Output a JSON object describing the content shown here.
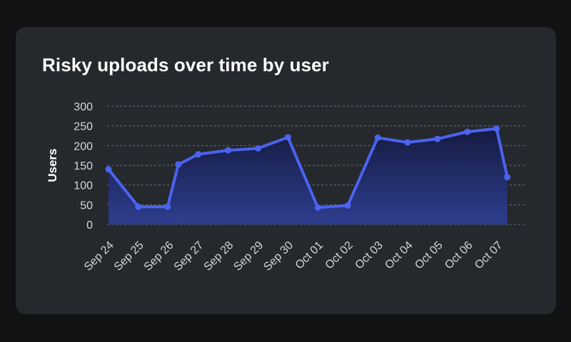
{
  "card": {
    "title": "Risky uploads over time by user"
  },
  "chart_data": {
    "type": "area",
    "title": "Risky uploads over time by user",
    "xlabel": "",
    "ylabel": "Users",
    "ylim": [
      0,
      300
    ],
    "yticks": [
      0,
      50,
      100,
      150,
      200,
      250,
      300
    ],
    "grid": true,
    "legend": "none",
    "categories": [
      "Sep 24",
      "Sep 25",
      "Sep 26",
      "Sep 27",
      "Sep 28",
      "Sep 29",
      "Sep 30",
      "Oct 01",
      "Oct 02",
      "Oct 03",
      "Oct 04",
      "Oct 05",
      "Oct 06",
      "Oct 07"
    ],
    "series": [
      {
        "x": [
          "Sep 24",
          "Sep 25",
          "Sep 26",
          "Sep 26",
          "Sep 27",
          "Sep 28",
          "Sep 29",
          "Sep 30",
          "Oct 01",
          "Oct 02",
          "Oct 03",
          "Oct 04",
          "Oct 05",
          "Oct 06",
          "Oct 07",
          "Oct 07"
        ],
        "values": [
          140,
          45,
          45,
          152,
          178,
          188,
          193,
          221,
          43,
          48,
          220,
          208,
          217,
          235,
          243,
          120
        ]
      }
    ],
    "colors": {
      "line": "#4b63f0",
      "fill_top": "#151b40",
      "fill_bottom": "#2e3d8f",
      "grid": "#6b6f78"
    }
  }
}
